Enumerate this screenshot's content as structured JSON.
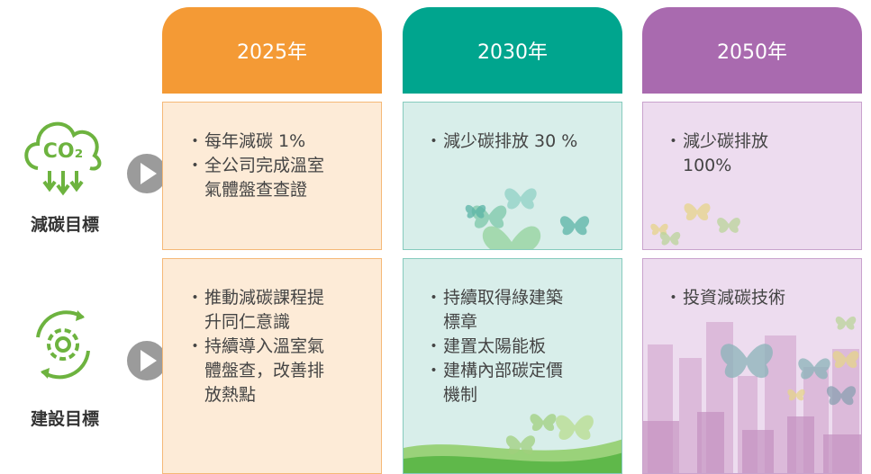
{
  "columns": [
    "2025年",
    "2030年",
    "2050年"
  ],
  "rows": [
    {
      "label": "減碳目標",
      "icon_text": "CO₂",
      "cells": [
        [
          "每年減碳 1%",
          "全公司完成溫室氣體盤查查證"
        ],
        [
          "減少碳排放 30 %"
        ],
        [
          "減少碳排放 100%"
        ]
      ]
    },
    {
      "label": "建設目標",
      "cells": [
        [
          "推動減碳課程提升同仁意識",
          "持續導入溫室氣體盤查，改善排放熱點"
        ],
        [
          "持續取得綠建築標章",
          "建置太陽能板",
          "建構內部碳定價機制"
        ],
        [
          "投資減碳技術"
        ]
      ]
    }
  ]
}
